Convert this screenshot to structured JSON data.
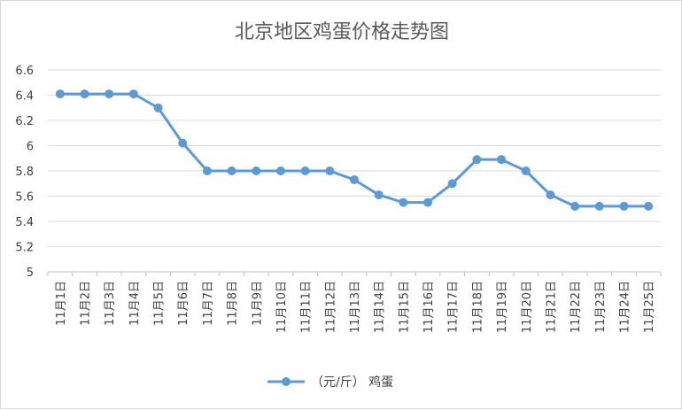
{
  "chart_data": {
    "type": "line",
    "title": "北京地区鸡蛋价格走势图",
    "xlabel": "",
    "ylabel": "",
    "categories": [
      "11月1日",
      "11月2日",
      "11月3日",
      "11月4日",
      "11月5日",
      "11月6日",
      "11月7日",
      "11月8日",
      "11月9日",
      "11月10日",
      "11月11日",
      "11月12日",
      "11月13日",
      "11月14日",
      "11月15日",
      "11月16日",
      "11月17日",
      "11月18日",
      "11月19日",
      "11月20日",
      "11月21日",
      "11月22日",
      "11月23日",
      "11月24日",
      "11月25日"
    ],
    "series": [
      {
        "name": "（元/斤） 鸡蛋",
        "color": "#5b9bd5",
        "values": [
          6.41,
          6.41,
          6.41,
          6.41,
          6.3,
          6.02,
          5.8,
          5.8,
          5.8,
          5.8,
          5.8,
          5.8,
          5.73,
          5.61,
          5.55,
          5.55,
          5.7,
          5.89,
          5.89,
          5.8,
          5.61,
          5.52,
          5.52,
          5.52,
          5.52
        ]
      }
    ],
    "ylim": [
      5,
      6.6
    ],
    "yticks": [
      "5",
      "5.2",
      "5.4",
      "5.6",
      "5.8",
      "6",
      "6.2",
      "6.4",
      "6.6"
    ],
    "grid": true,
    "legend_position": "bottom"
  }
}
